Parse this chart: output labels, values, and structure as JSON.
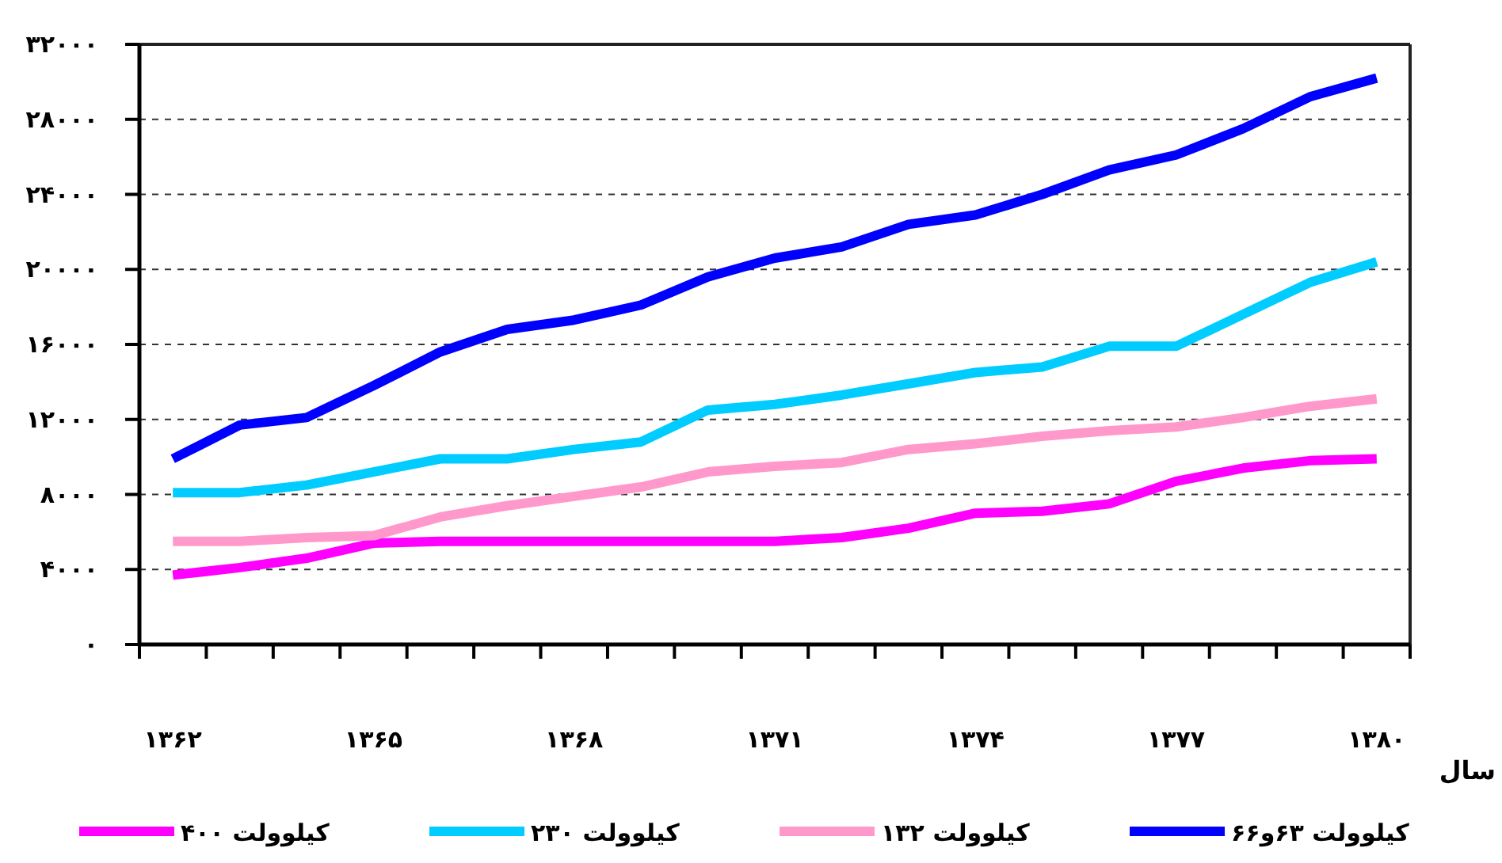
{
  "chart_data": {
    "type": "line",
    "xlabel": "سال",
    "categories": [
      "۱۳۶۲",
      null,
      null,
      "۱۳۶۵",
      null,
      null,
      "۱۳۶۸",
      null,
      null,
      "۱۳۷۱",
      null,
      null,
      "۱۳۷۴",
      null,
      null,
      "۱۳۷۷",
      null,
      null,
      "۱۳۸۰"
    ],
    "series": [
      {
        "name": "کیلوولت ۴۰۰",
        "color": "#ff00ff",
        "values": [
          3700,
          4100,
          4600,
          5400,
          5500,
          5500,
          5500,
          5500,
          5500,
          5500,
          5700,
          6200,
          7000,
          7100,
          7500,
          8700,
          9400,
          9800,
          9900
        ]
      },
      {
        "name": "کیلوولت ۲۳۰",
        "color": "#00ccff",
        "values": [
          8100,
          8100,
          8500,
          9200,
          9900,
          9900,
          10400,
          10800,
          12500,
          12800,
          13300,
          13900,
          14500,
          14800,
          15900,
          15900,
          17600,
          19300,
          20400
        ]
      },
      {
        "name": "کیلوولت ۱۳۲",
        "color": "#ff99cc",
        "values": [
          5500,
          5500,
          5700,
          5800,
          6800,
          7400,
          7900,
          8400,
          9200,
          9500,
          9700,
          10400,
          10700,
          11100,
          11400,
          11600,
          12100,
          12700,
          13100
        ]
      },
      {
        "name": "کیلوولت ۶۳و۶۶",
        "color": "#0000ff",
        "values": [
          9900,
          11700,
          12100,
          13800,
          15600,
          16800,
          17300,
          18100,
          19600,
          20600,
          21200,
          22400,
          22900,
          24000,
          25300,
          26100,
          27500,
          29200,
          30200
        ]
      }
    ],
    "ylim": [
      0,
      32000
    ],
    "yticks": [
      {
        "value": 0,
        "label": "۰"
      },
      {
        "value": 4000,
        "label": "۴۰۰۰"
      },
      {
        "value": 8000,
        "label": "۸۰۰۰"
      },
      {
        "value": 12000,
        "label": "۱۲۰۰۰"
      },
      {
        "value": 16000,
        "label": "۱۶۰۰۰"
      },
      {
        "value": 20000,
        "label": "۲۰۰۰۰"
      },
      {
        "value": 24000,
        "label": "۲۴۰۰۰"
      },
      {
        "value": 28000,
        "label": "۲۸۰۰۰"
      },
      {
        "value": 32000,
        "label": "۳۲۰۰۰"
      }
    ],
    "grid": "y",
    "legend": "bottom",
    "marker": "none",
    "line_style": "solid"
  }
}
